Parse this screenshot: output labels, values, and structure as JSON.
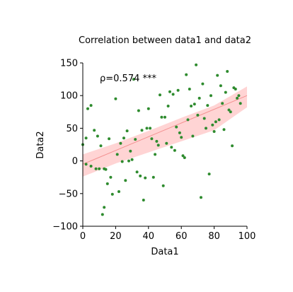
{
  "chart_data": {
    "type": "scatter",
    "title": "Correlation between data1 and data2",
    "xlabel": "Data1",
    "ylabel": "Data2",
    "xlim": [
      0,
      100
    ],
    "ylim": [
      -100,
      150
    ],
    "xticks": [
      0,
      20,
      40,
      60,
      80,
      100
    ],
    "yticks": [
      -100,
      -50,
      0,
      50,
      100,
      150
    ],
    "annotation": "ρ=0.574 ***",
    "colors": {
      "points": "#2e8b2e",
      "trend_line": "#f08080",
      "confidence_band": "#ffcccc"
    },
    "trend": {
      "x": [
        0,
        100
      ],
      "y": [
        -5,
        100
      ]
    },
    "band": {
      "x": [
        0,
        20,
        40,
        60,
        80,
        100
      ],
      "upper": [
        10,
        27,
        46,
        66,
        85,
        114
      ],
      "lower": [
        -24,
        -4,
        13,
        30,
        47,
        82
      ]
    },
    "points": [
      {
        "x": 0,
        "y": 25
      },
      {
        "x": 2,
        "y": 35
      },
      {
        "x": 3,
        "y": 80
      },
      {
        "x": 5,
        "y": 85
      },
      {
        "x": 7,
        "y": 47
      },
      {
        "x": 9,
        "y": 38
      },
      {
        "x": 11,
        "y": 23
      },
      {
        "x": 2,
        "y": -5
      },
      {
        "x": 5,
        "y": -8
      },
      {
        "x": 8,
        "y": -12
      },
      {
        "x": 10,
        "y": -12
      },
      {
        "x": 13,
        "y": -12
      },
      {
        "x": 12,
        "y": -82
      },
      {
        "x": 13,
        "y": -71
      },
      {
        "x": 14,
        "y": -13
      },
      {
        "x": 15,
        "y": -35
      },
      {
        "x": 16,
        "y": 34
      },
      {
        "x": 17,
        "y": -25
      },
      {
        "x": 18,
        "y": -51
      },
      {
        "x": 20,
        "y": 95
      },
      {
        "x": 21,
        "y": 10
      },
      {
        "x": 22,
        "y": -47
      },
      {
        "x": 23,
        "y": 27
      },
      {
        "x": 24,
        "y": -1
      },
      {
        "x": 25,
        "y": 35
      },
      {
        "x": 26,
        "y": -30
      },
      {
        "x": 27,
        "y": 46
      },
      {
        "x": 28,
        "y": 0
      },
      {
        "x": 29,
        "y": 15
      },
      {
        "x": 30,
        "y": 2
      },
      {
        "x": 31,
        "y": 125
      },
      {
        "x": 32,
        "y": 33
      },
      {
        "x": 33,
        "y": -17
      },
      {
        "x": 34,
        "y": 77
      },
      {
        "x": 35,
        "y": -23
      },
      {
        "x": 36,
        "y": 47
      },
      {
        "x": 37,
        "y": -60
      },
      {
        "x": 38,
        "y": -26
      },
      {
        "x": 39,
        "y": 50
      },
      {
        "x": 40,
        "y": 80
      },
      {
        "x": 41,
        "y": 50
      },
      {
        "x": 42,
        "y": 34
      },
      {
        "x": 43,
        "y": -25
      },
      {
        "x": 44,
        "y": 10
      },
      {
        "x": 45,
        "y": 30
      },
      {
        "x": 46,
        "y": 24
      },
      {
        "x": 47,
        "y": 101
      },
      {
        "x": 48,
        "y": 67
      },
      {
        "x": 49,
        "y": -38
      },
      {
        "x": 50,
        "y": 67
      },
      {
        "x": 51,
        "y": 27
      },
      {
        "x": 52,
        "y": 84
      },
      {
        "x": 53,
        "y": 106
      },
      {
        "x": 54,
        "y": 21
      },
      {
        "x": 55,
        "y": 102
      },
      {
        "x": 56,
        "y": 16
      },
      {
        "x": 57,
        "y": 52
      },
      {
        "x": 58,
        "y": 108
      },
      {
        "x": 59,
        "y": 43
      },
      {
        "x": 60,
        "y": 36
      },
      {
        "x": 61,
        "y": 8
      },
      {
        "x": 62,
        "y": 5
      },
      {
        "x": 63,
        "y": 132
      },
      {
        "x": 64,
        "y": 63
      },
      {
        "x": 65,
        "y": 110
      },
      {
        "x": 66,
        "y": 84
      },
      {
        "x": 67,
        "y": 38
      },
      {
        "x": 68,
        "y": 87
      },
      {
        "x": 69,
        "y": 147
      },
      {
        "x": 70,
        "y": 70
      },
      {
        "x": 71,
        "y": 96
      },
      {
        "x": 72,
        "y": -56
      },
      {
        "x": 73,
        "y": 118
      },
      {
        "x": 74,
        "y": 65
      },
      {
        "x": 75,
        "y": 50
      },
      {
        "x": 76,
        "y": 85
      },
      {
        "x": 77,
        "y": -20
      },
      {
        "x": 78,
        "y": 100
      },
      {
        "x": 79,
        "y": 55
      },
      {
        "x": 80,
        "y": 45
      },
      {
        "x": 81,
        "y": 60
      },
      {
        "x": 82,
        "y": 131
      },
      {
        "x": 83,
        "y": 63
      },
      {
        "x": 84,
        "y": 115
      },
      {
        "x": 85,
        "y": 88
      },
      {
        "x": 86,
        "y": 48
      },
      {
        "x": 87,
        "y": 105
      },
      {
        "x": 88,
        "y": 137
      },
      {
        "x": 89,
        "y": 78
      },
      {
        "x": 90,
        "y": 75
      },
      {
        "x": 91,
        "y": 23
      },
      {
        "x": 92,
        "y": 112
      },
      {
        "x": 93,
        "y": 110
      },
      {
        "x": 94,
        "y": 96
      },
      {
        "x": 95,
        "y": 100
      },
      {
        "x": 96,
        "y": 88
      }
    ]
  }
}
